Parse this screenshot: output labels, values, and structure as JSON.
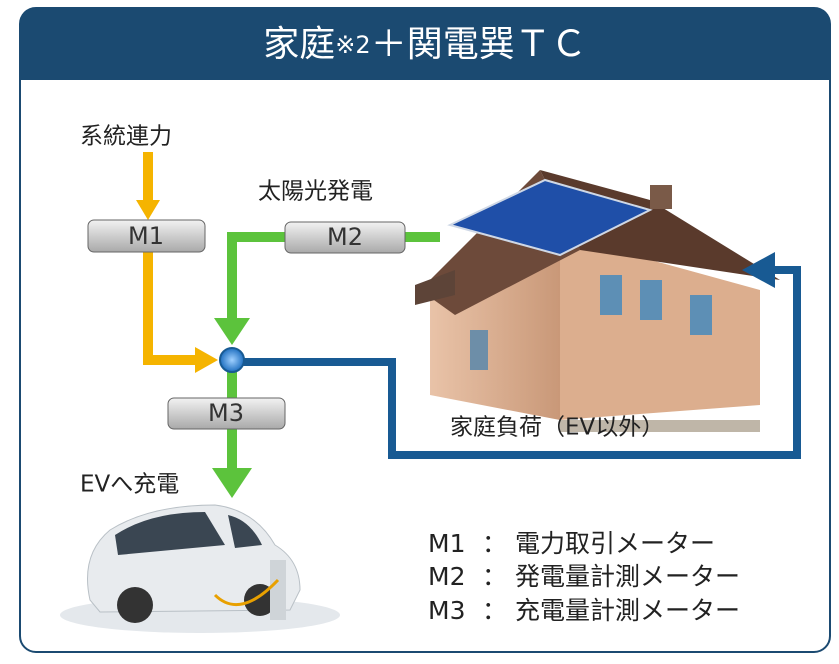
{
  "header": {
    "title": "家庭",
    "title_note": "※2",
    "title_rest": "＋関電巽ＴＣ"
  },
  "labels": {
    "grid": "系統連力",
    "solar": "太陽光発電",
    "load": "家庭負荷（EV以外）",
    "ev": "EVへ充電"
  },
  "meters": [
    {
      "label": "M1"
    },
    {
      "label": "M2"
    },
    {
      "label": "M3"
    }
  ],
  "legend": [
    {
      "key": "M1",
      "sep": "：",
      "text": "電力取引メーター"
    },
    {
      "key": "M2",
      "sep": "：",
      "text": "発電量計測メーター"
    },
    {
      "key": "M3",
      "sep": "：",
      "text": "充電量計測メーター"
    }
  ]
}
